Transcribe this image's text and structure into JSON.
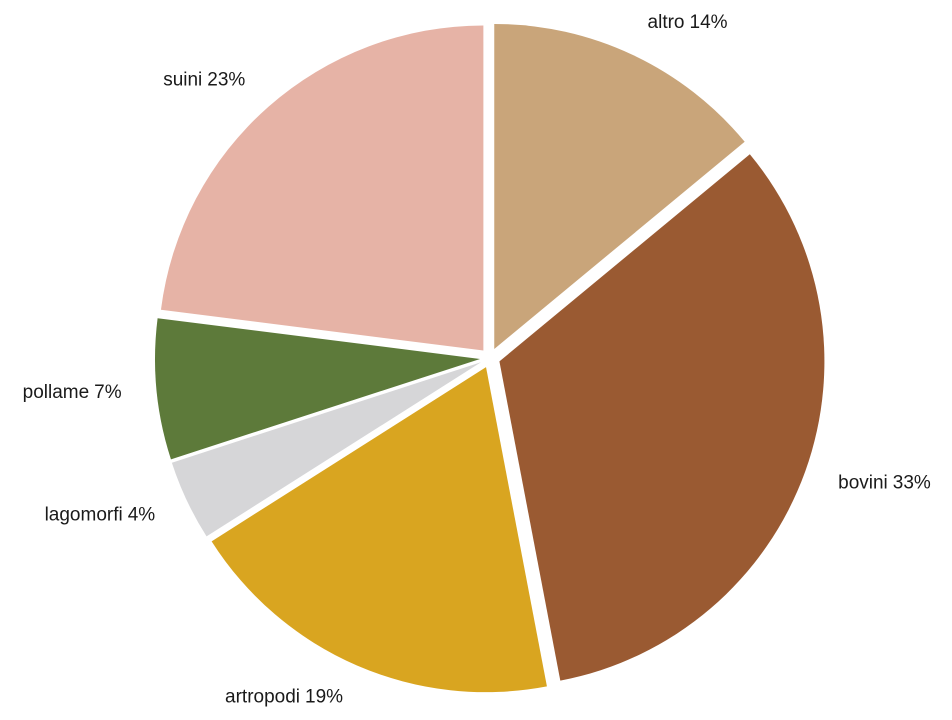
{
  "chart_data": {
    "type": "pie",
    "categories": [
      "altro",
      "bovini",
      "artropodi",
      "lagomorfi",
      "pollame",
      "suini"
    ],
    "values": [
      14,
      33,
      19,
      4,
      7,
      23
    ],
    "value_labels": [
      "14%",
      "33%",
      "19%",
      "4%",
      "7%",
      "23%"
    ],
    "colors": [
      "#c9a57a",
      "#9a5a32",
      "#d9a520",
      "#d6d6d8",
      "#5d7a3a",
      "#e6b3a6"
    ]
  }
}
